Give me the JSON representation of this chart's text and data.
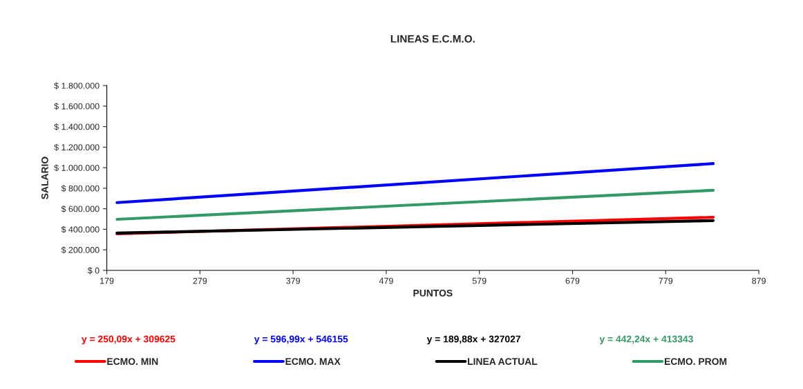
{
  "chart_data": {
    "type": "line",
    "title": "LINEAS E.C.M.O.",
    "xlabel": "PUNTOS",
    "ylabel": "SALARIO",
    "x": [
      190,
      830
    ],
    "series": [
      {
        "name": "ECMO. MIN",
        "color": "#ff0000",
        "values": [
          357000,
          517000
        ]
      },
      {
        "name": "ECMO. MAX",
        "color": "#0000ff",
        "values": [
          660000,
          1040000
        ]
      },
      {
        "name": "LINEA ACTUAL",
        "color": "#000000",
        "values": [
          363000,
          485000
        ]
      },
      {
        "name": "ECMO. PROM",
        "color": "#339966",
        "values": [
          497000,
          780000
        ]
      }
    ],
    "annotations": [
      "y = 250,09x + 309625",
      "y = 596,99x + 546155",
      "y = 189,88x + 327027",
      "y = 442,24x + 413343"
    ],
    "xlim": [
      179,
      879
    ],
    "xticks": [
      179,
      279,
      379,
      479,
      579,
      679,
      779,
      879
    ],
    "ylim": [
      0,
      1800000
    ],
    "yticks": [
      {
        "value": 0,
        "label": "$ 0"
      },
      {
        "value": 200000,
        "label": "$ 200.000"
      },
      {
        "value": 400000,
        "label": "$ 400.000"
      },
      {
        "value": 600000,
        "label": "$ 600.000"
      },
      {
        "value": 800000,
        "label": "$ 800.000"
      },
      {
        "value": 1000000,
        "label": "$ 1.000.000"
      },
      {
        "value": 1200000,
        "label": "$ 1.200.000"
      },
      {
        "value": 1400000,
        "label": "$ 1.400.000"
      },
      {
        "value": 1600000,
        "label": "$ 1.600.000"
      },
      {
        "value": 1800000,
        "label": "$ 1.800.000"
      }
    ],
    "grid": false,
    "legend": "bottom",
    "marker": "none",
    "line_style": "solid"
  }
}
